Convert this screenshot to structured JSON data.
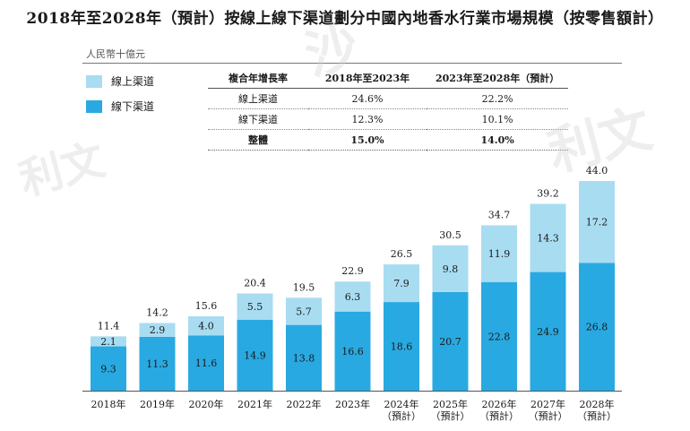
{
  "title": "2018年至2028年（預計）按線上線下渠道劃分中國內地香水行業市場規模（按零售額計）",
  "unit": "人民幣十億元",
  "legend": [
    {
      "label": "線上渠道",
      "color": "#a8dcf1"
    },
    {
      "label": "線下渠道",
      "color": "#29a9e1"
    }
  ],
  "cagr_table": {
    "headers": [
      "複合年增長率",
      "2018年至2023年",
      "2023年至2028年（預計）"
    ],
    "rows": [
      [
        "線上渠道",
        "24.6%",
        "22.2%"
      ],
      [
        "線下渠道",
        "12.3%",
        "10.1%"
      ],
      [
        "整體",
        "15.0%",
        "14.0%"
      ]
    ]
  },
  "chart_data": {
    "type": "bar",
    "stacked": true,
    "categories": [
      "2018年",
      "2019年",
      "2020年",
      "2021年",
      "2022年",
      "2023年",
      "2024年\n（預計）",
      "2025年\n（預計）",
      "2026年\n（預計）",
      "2027年\n（預計）",
      "2028年\n（預計）"
    ],
    "series": [
      {
        "name": "線下渠道",
        "color": "#29a9e1",
        "values": [
          9.3,
          11.3,
          11.6,
          14.9,
          13.8,
          16.6,
          18.6,
          20.7,
          22.8,
          24.9,
          26.8
        ]
      },
      {
        "name": "線上渠道",
        "color": "#a8dcf1",
        "values": [
          2.1,
          2.9,
          4.0,
          5.5,
          5.7,
          6.3,
          7.9,
          9.8,
          11.9,
          14.3,
          17.2
        ]
      }
    ],
    "totals": [
      11.4,
      14.2,
      15.6,
      20.4,
      19.5,
      22.9,
      26.5,
      30.5,
      34.7,
      39.2,
      44.0
    ],
    "ylim": [
      0,
      44
    ]
  },
  "watermark": "沙利文"
}
